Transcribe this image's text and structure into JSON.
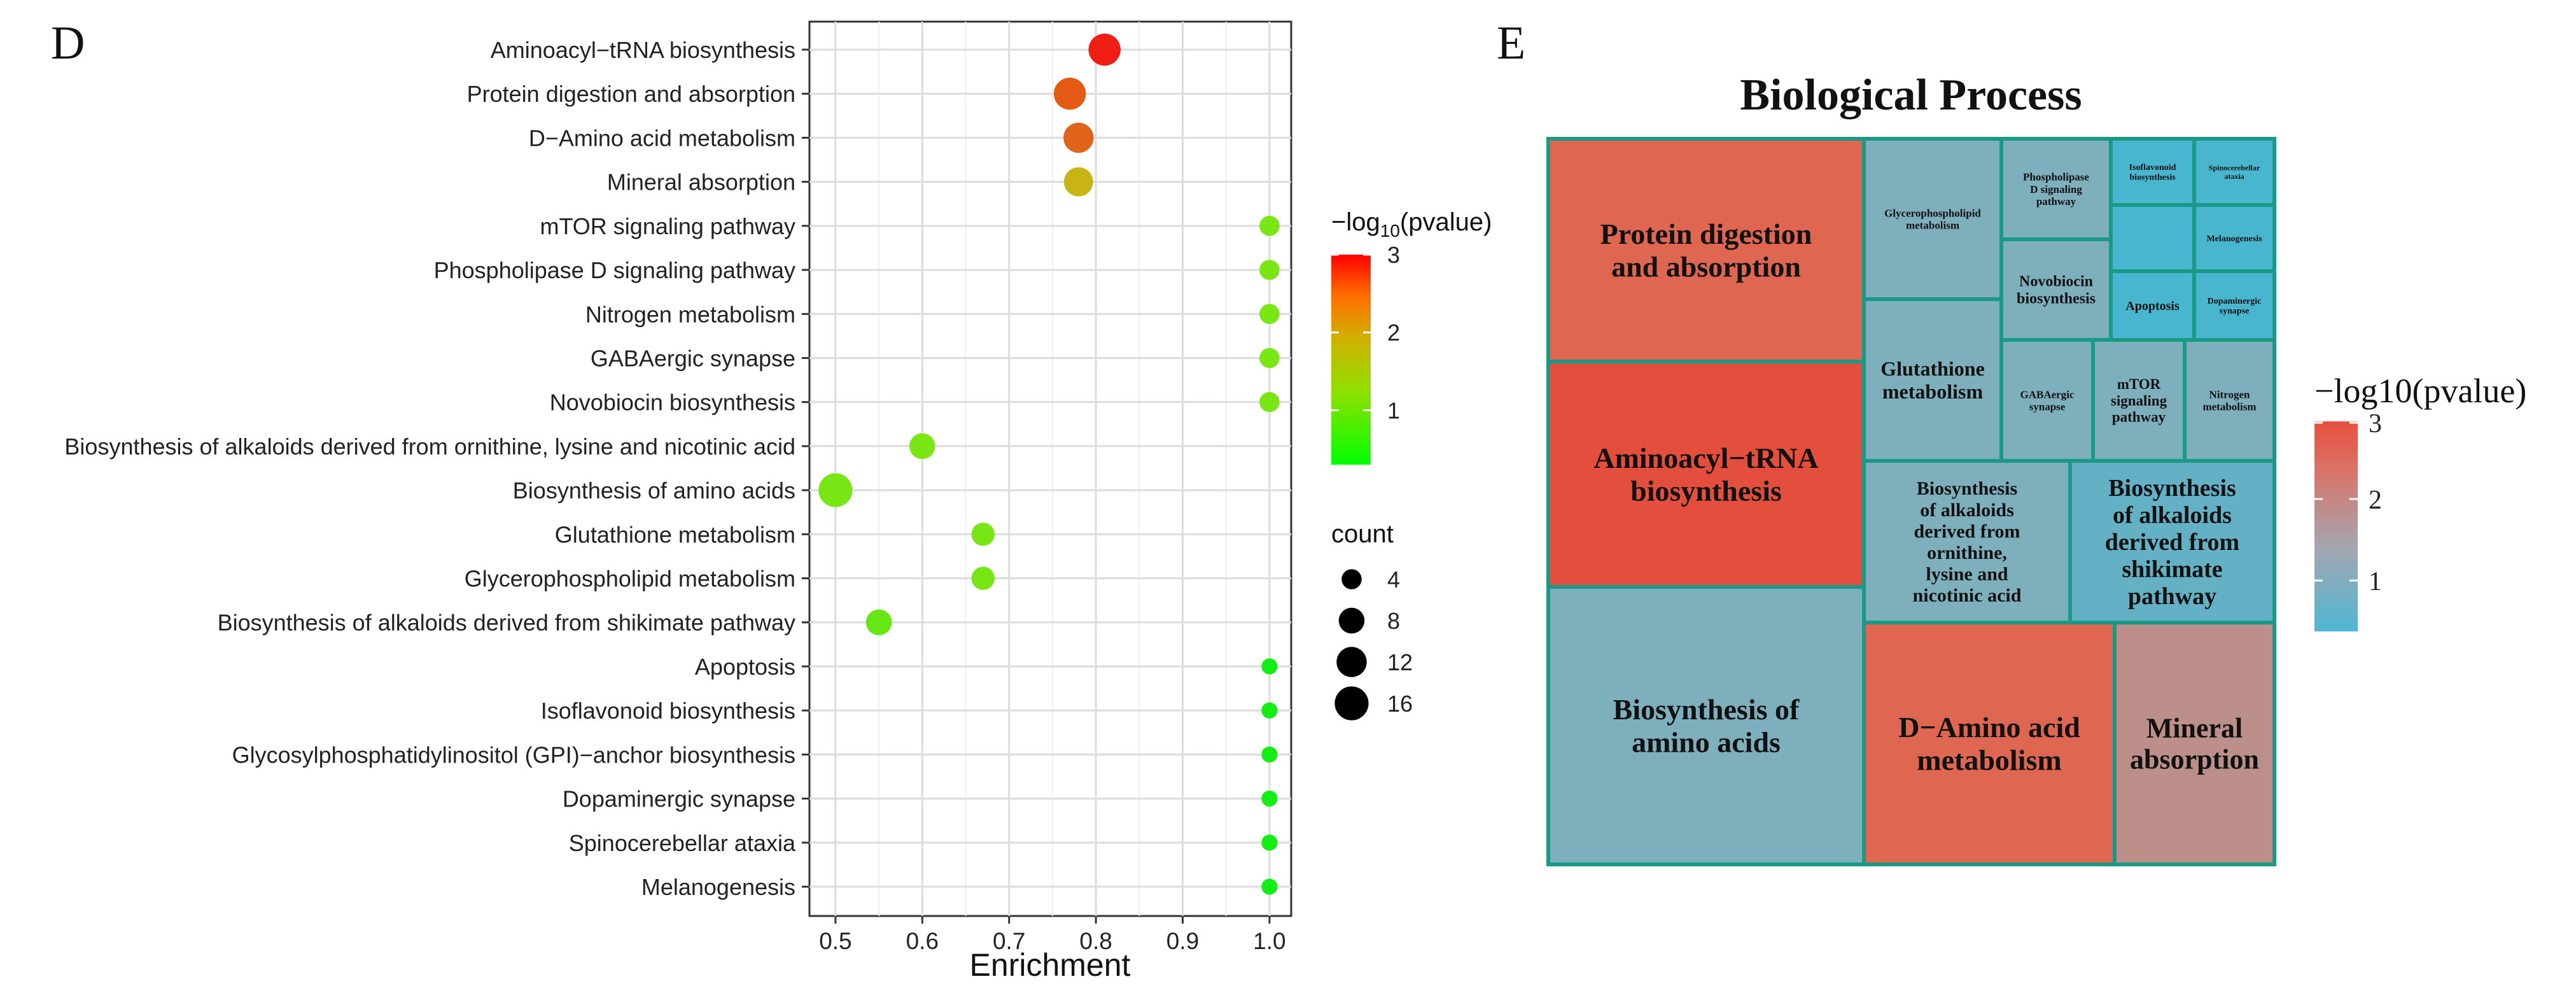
{
  "figure": {
    "panel_d_letter": "D",
    "panel_e_letter": "E"
  },
  "chart_data": [
    {
      "type": "scatter",
      "panel": "D",
      "xlabel": "Enrichment",
      "ylabel": "",
      "xlim": [
        0.47,
        1.025
      ],
      "xticks": [
        0.5,
        0.6,
        0.7,
        0.8,
        0.9,
        1.0
      ],
      "xtick_labels": [
        "0.5",
        "0.6",
        "0.7",
        "0.8",
        "0.9",
        "1.0"
      ],
      "grid": true,
      "color_legend": {
        "title_prefix": "−log",
        "title_subscript": "10",
        "title_suffix": "(pvalue)",
        "min": 0.3,
        "max": 3.0,
        "ticks": [
          "1",
          "2",
          "3"
        ],
        "gradient_colors": [
          "#00ff00",
          "#c8c800",
          "#ff8c00",
          "#ff0000"
        ]
      },
      "size_legend": {
        "title": "count",
        "values": [
          4,
          8,
          12,
          16
        ],
        "labels": [
          "4",
          "8",
          "12",
          "16"
        ]
      },
      "points": [
        {
          "term": "Aminoacyl−tRNA biosynthesis",
          "enrichment": 0.81,
          "count": 14,
          "color": "#f01e14"
        },
        {
          "term": "Protein digestion and absorption",
          "enrichment": 0.77,
          "count": 14,
          "color": "#e55a14"
        },
        {
          "term": "D−Amino acid metabolism",
          "enrichment": 0.78,
          "count": 12,
          "color": "#e0641a"
        },
        {
          "term": "Mineral absorption",
          "enrichment": 0.78,
          "count": 11,
          "color": "#c8b414"
        },
        {
          "term": "mTOR signaling pathway",
          "enrichment": 1.0,
          "count": 4,
          "color": "#7ae614"
        },
        {
          "term": "Phospholipase D signaling pathway",
          "enrichment": 1.0,
          "count": 4,
          "color": "#7ae614"
        },
        {
          "term": "Nitrogen metabolism",
          "enrichment": 1.0,
          "count": 4,
          "color": "#7ae614"
        },
        {
          "term": "GABAergic synapse",
          "enrichment": 1.0,
          "count": 4,
          "color": "#7ae614"
        },
        {
          "term": "Novobiocin biosynthesis",
          "enrichment": 1.0,
          "count": 4,
          "color": "#7ae614"
        },
        {
          "term": "Biosynthesis of alkaloids derived from ornithine, lysine and nicotinic acid",
          "enrichment": 0.6,
          "count": 8,
          "color": "#7ae614"
        },
        {
          "term": "Biosynthesis of amino acids",
          "enrichment": 0.5,
          "count": 16,
          "color": "#78e614"
        },
        {
          "term": "Glutathione metabolism",
          "enrichment": 0.67,
          "count": 6,
          "color": "#78e614"
        },
        {
          "term": "Glycerophospholipid metabolism",
          "enrichment": 0.67,
          "count": 6,
          "color": "#78e614"
        },
        {
          "term": "Biosynthesis of alkaloids derived from shikimate pathway",
          "enrichment": 0.55,
          "count": 8,
          "color": "#66e614"
        },
        {
          "term": "Apoptosis",
          "enrichment": 1.0,
          "count": 2,
          "color": "#14ee14"
        },
        {
          "term": "Isoflavonoid biosynthesis",
          "enrichment": 1.0,
          "count": 2,
          "color": "#14ee14"
        },
        {
          "term": "Glycosylphosphatidylinositol (GPI)−anchor biosynthesis",
          "enrichment": 1.0,
          "count": 2,
          "color": "#14ee14"
        },
        {
          "term": "Dopaminergic synapse",
          "enrichment": 1.0,
          "count": 2,
          "color": "#14ee14"
        },
        {
          "term": "Spinocerebellar ataxia",
          "enrichment": 1.0,
          "count": 2,
          "color": "#14ee14"
        },
        {
          "term": "Melanogenesis",
          "enrichment": 1.0,
          "count": 2,
          "color": "#14ee14"
        }
      ]
    },
    {
      "type": "treemap",
      "panel": "E",
      "title": "Biological Process",
      "border_color": "#1a9a86",
      "color_legend": {
        "title": "−log10(pvalue)",
        "ticks": [
          "1",
          "2",
          "3"
        ],
        "gradient_colors": [
          "#4fb7d3",
          "#9ea7b4",
          "#d8706a",
          "#e8503c"
        ]
      },
      "tiles": [
        {
          "label": "Protein digestion and absorption",
          "lines": [
            "Protein digestion",
            "and absorption"
          ],
          "color": "#df6650"
        },
        {
          "label": "Aminoacyl−tRNA biosynthesis",
          "lines": [
            "Aminoacyl−tRNA",
            "biosynthesis"
          ],
          "color": "#e34f3c"
        },
        {
          "label": "Biosynthesis of amino acids",
          "lines": [
            "Biosynthesis of",
            "amino acids"
          ],
          "color": "#7eafbc"
        },
        {
          "label": "Glycerophospholipid metabolism",
          "lines": [
            "Glycerophospholipid",
            "metabolism"
          ],
          "color": "#7eafbc"
        },
        {
          "label": "Phospholipase D signaling pathway",
          "lines": [
            "Phospholipase",
            "D signaling",
            "pathway"
          ],
          "color": "#7eafbc"
        },
        {
          "label": "Novobiocin biosynthesis",
          "lines": [
            "Novobiocin",
            "biosynthesis"
          ],
          "color": "#7eafbc"
        },
        {
          "label": "Isoflavonoid biosynthesis",
          "lines": [
            "Isoflavonoid",
            "biosynthesis"
          ],
          "color": "#49b6d0"
        },
        {
          "label": "Spinocerebellar ataxia",
          "lines": [
            "Spinocerebellar",
            "ataxia"
          ],
          "color": "#49b6d0"
        },
        {
          "label": "",
          "lines": [],
          "color": "#49b6d0"
        },
        {
          "label": "Melanogenesis",
          "lines": [
            "Melanogenesis"
          ],
          "color": "#49b6d0"
        },
        {
          "label": "Apoptosis",
          "lines": [
            "Apoptosis"
          ],
          "color": "#49b6d0"
        },
        {
          "label": "Dopaminergic synapse",
          "lines": [
            "Dopaminergic",
            "synapse"
          ],
          "color": "#49b6d0"
        },
        {
          "label": "Glutathione metabolism",
          "lines": [
            "Glutathione",
            "metabolism"
          ],
          "color": "#7eafbc"
        },
        {
          "label": "GABAergic synapse",
          "lines": [
            "GABAergic",
            "synapse"
          ],
          "color": "#7eafbc"
        },
        {
          "label": "mTOR signaling pathway",
          "lines": [
            "mTOR",
            "signaling",
            "pathway"
          ],
          "color": "#7eafbc"
        },
        {
          "label": "Nitrogen metabolism",
          "lines": [
            "Nitrogen",
            "metabolism"
          ],
          "color": "#7eafbc"
        },
        {
          "label": "Biosynthesis of alkaloids derived from ornithine, lysine and nicotinic acid",
          "lines": [
            "Biosynthesis",
            "of alkaloids",
            "derived from",
            "ornithine,",
            "lysine and",
            "nicotinic acid"
          ],
          "color": "#7eafbc"
        },
        {
          "label": "Biosynthesis of alkaloids derived from shikimate pathway",
          "lines": [
            "Biosynthesis",
            "of alkaloids",
            "derived from",
            "shikimate",
            "pathway"
          ],
          "color": "#64b1c6"
        },
        {
          "label": "D−Amino acid metabolism",
          "lines": [
            "D−Amino acid",
            "metabolism"
          ],
          "color": "#df6650"
        },
        {
          "label": "Mineral absorption",
          "lines": [
            "Mineral",
            "absorption"
          ],
          "color": "#bc8f8b"
        }
      ]
    }
  ]
}
